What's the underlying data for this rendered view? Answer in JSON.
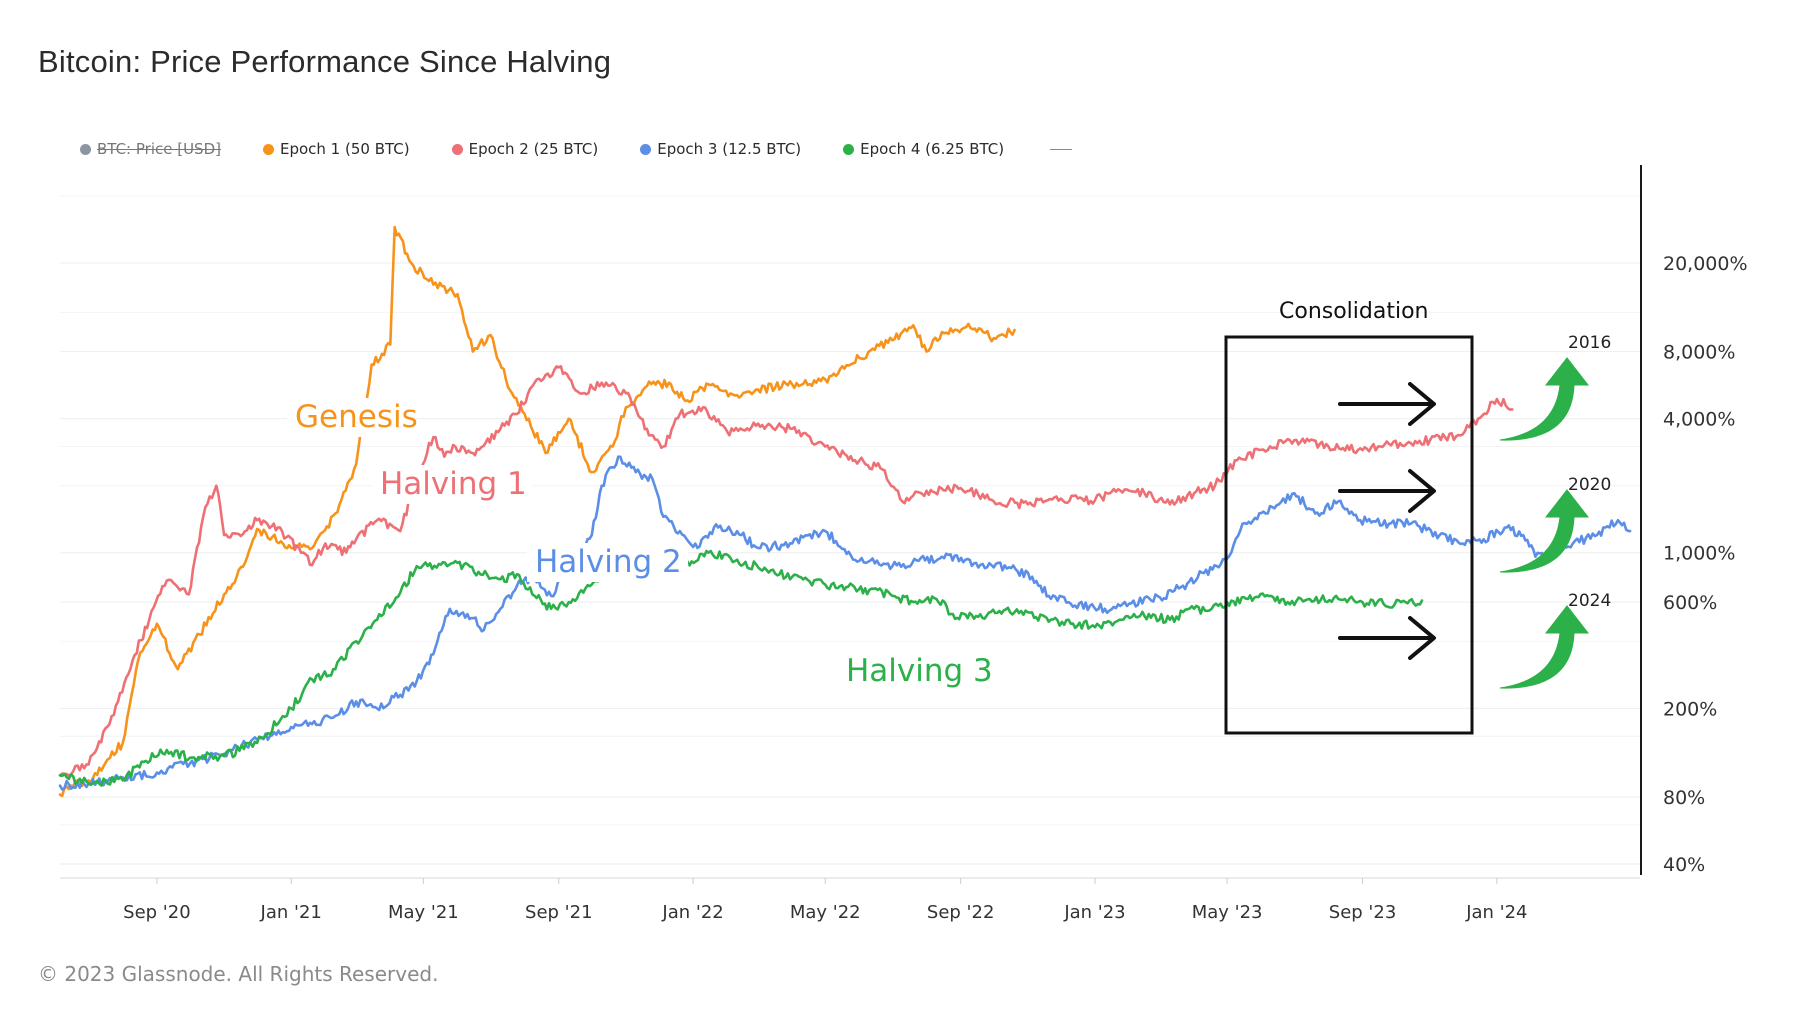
{
  "header": {
    "title": "Bitcoin: Price Performance Since Halving"
  },
  "footer": {
    "copyright": "© 2023 Glassnode. All Rights Reserved."
  },
  "legend": {
    "items": [
      {
        "label": "BTC: Price [USD]",
        "color": "#8a96a3",
        "disabled": true
      },
      {
        "label": "Epoch 1 (50 BTC)",
        "color": "#f7931a"
      },
      {
        "label": "Epoch 2 (25 BTC)",
        "color": "#ee7074"
      },
      {
        "label": "Epoch 3 (12.5 BTC)",
        "color": "#5b8ee6"
      },
      {
        "label": "Epoch 4 (6.25 BTC)",
        "color": "#2bb04a"
      }
    ]
  },
  "chart_data": {
    "type": "line",
    "title": "Bitcoin: Price Performance Since Halving",
    "yscale": "log",
    "y_ticks": [
      "20,000%",
      "8,000%",
      "4,000%",
      "1,000%",
      "600%",
      "200%",
      "80%",
      "40%"
    ],
    "x_ticks": [
      "Sep '20",
      "Jan '21",
      "May '21",
      "Sep '21",
      "Jan '22",
      "May '22",
      "Sep '22",
      "Jan '23",
      "May '23",
      "Sep '23",
      "Jan '24"
    ],
    "grid": true,
    "legend_position": "top-left",
    "series": [
      {
        "name": "Epoch 1 (50 BTC)",
        "color": "#f7931a",
        "points": [
          [
            "2020-06-05",
            82
          ],
          [
            "2020-06-15",
            90
          ],
          [
            "2020-07-01",
            95
          ],
          [
            "2020-08-01",
            140
          ],
          [
            "2020-08-15",
            330
          ],
          [
            "2020-09-01",
            480
          ],
          [
            "2020-09-20",
            300
          ],
          [
            "2020-10-10",
            430
          ],
          [
            "2020-11-01",
            650
          ],
          [
            "2020-11-20",
            900
          ],
          [
            "2020-12-01",
            1280
          ],
          [
            "2020-12-15",
            1180
          ],
          [
            "2021-01-01",
            1050
          ],
          [
            "2021-01-20",
            1050
          ],
          [
            "2021-02-10",
            1500
          ],
          [
            "2021-03-01",
            2500
          ],
          [
            "2021-03-15",
            7000
          ],
          [
            "2021-04-01",
            8600
          ],
          [
            "2021-04-05",
            29000
          ],
          [
            "2021-04-20",
            20000
          ],
          [
            "2021-05-10",
            16000
          ],
          [
            "2021-06-01",
            14500
          ],
          [
            "2021-06-15",
            8000
          ],
          [
            "2021-07-01",
            9500
          ],
          [
            "2021-07-15",
            6000
          ],
          [
            "2021-08-01",
            4200
          ],
          [
            "2021-08-20",
            2800
          ],
          [
            "2021-09-10",
            4000
          ],
          [
            "2021-10-01",
            2300
          ],
          [
            "2021-10-20",
            3000
          ],
          [
            "2021-11-01",
            4500
          ],
          [
            "2021-11-20",
            5600
          ],
          [
            "2021-12-10",
            5800
          ],
          [
            "2021-12-25",
            4800
          ],
          [
            "2022-01-15",
            5700
          ],
          [
            "2022-02-10",
            5100
          ],
          [
            "2022-03-01",
            5400
          ],
          [
            "2022-04-01",
            5700
          ],
          [
            "2022-05-01",
            6000
          ],
          [
            "2022-06-01",
            7500
          ],
          [
            "2022-07-01",
            9000
          ],
          [
            "2022-07-20",
            10500
          ],
          [
            "2022-08-01",
            8000
          ],
          [
            "2022-08-15",
            9800
          ],
          [
            "2022-09-10",
            10200
          ],
          [
            "2022-10-01",
            9200
          ],
          [
            "2022-10-20",
            10000
          ]
        ]
      },
      {
        "name": "Epoch 2 (25 BTC)",
        "color": "#ee7074",
        "points": [
          [
            "2020-06-05",
            100
          ],
          [
            "2020-07-01",
            112
          ],
          [
            "2020-07-20",
            170
          ],
          [
            "2020-08-10",
            330
          ],
          [
            "2020-08-25",
            500
          ],
          [
            "2020-09-10",
            750
          ],
          [
            "2020-09-30",
            650
          ],
          [
            "2020-10-15",
            1600
          ],
          [
            "2020-10-25",
            2000
          ],
          [
            "2020-11-01",
            1200
          ],
          [
            "2020-11-20",
            1250
          ],
          [
            "2020-12-01",
            1400
          ],
          [
            "2020-12-20",
            1300
          ],
          [
            "2021-01-10",
            1000
          ],
          [
            "2021-01-20",
            880
          ],
          [
            "2021-02-01",
            1100
          ],
          [
            "2021-02-20",
            1000
          ],
          [
            "2021-03-01",
            1150
          ],
          [
            "2021-03-20",
            1400
          ],
          [
            "2021-04-10",
            1250
          ],
          [
            "2021-04-25",
            2200
          ],
          [
            "2021-05-10",
            3300
          ],
          [
            "2021-05-20",
            2700
          ],
          [
            "2021-05-30",
            3000
          ],
          [
            "2021-06-15",
            2800
          ],
          [
            "2021-07-10",
            3600
          ],
          [
            "2021-07-25",
            4200
          ],
          [
            "2021-08-10",
            5800
          ],
          [
            "2021-09-01",
            6800
          ],
          [
            "2021-09-20",
            5200
          ],
          [
            "2021-10-10",
            5800
          ],
          [
            "2021-11-01",
            5200
          ],
          [
            "2021-11-20",
            3600
          ],
          [
            "2021-12-05",
            3000
          ],
          [
            "2021-12-20",
            4200
          ],
          [
            "2022-01-10",
            4500
          ],
          [
            "2022-02-01",
            3500
          ],
          [
            "2022-03-01",
            3800
          ],
          [
            "2022-04-01",
            3600
          ],
          [
            "2022-05-01",
            3000
          ],
          [
            "2022-06-01",
            2600
          ],
          [
            "2022-06-20",
            2400
          ],
          [
            "2022-07-10",
            1700
          ],
          [
            "2022-08-01",
            1900
          ],
          [
            "2022-09-01",
            1950
          ],
          [
            "2022-10-01",
            1700
          ],
          [
            "2022-11-01",
            1650
          ],
          [
            "2022-12-01",
            1750
          ],
          [
            "2023-01-01",
            1720
          ],
          [
            "2023-01-20",
            1880
          ],
          [
            "2023-02-15",
            1850
          ],
          [
            "2023-03-10",
            1650
          ],
          [
            "2023-04-01",
            1850
          ],
          [
            "2023-04-20",
            2000
          ],
          [
            "2023-05-10",
            2600
          ],
          [
            "2023-06-01",
            2900
          ],
          [
            "2023-07-01",
            3200
          ],
          [
            "2023-08-01",
            3000
          ],
          [
            "2023-08-20",
            2900
          ],
          [
            "2023-09-15",
            3000
          ],
          [
            "2023-10-15",
            3100
          ],
          [
            "2023-11-15",
            3300
          ],
          [
            "2023-12-01",
            3400
          ],
          [
            "2023-12-15",
            4000
          ],
          [
            "2024-01-01",
            4900
          ],
          [
            "2024-01-15",
            4400
          ]
        ]
      },
      {
        "name": "Epoch 3 (12.5 BTC)",
        "color": "#5b8ee6",
        "points": [
          [
            "2020-06-05",
            90
          ],
          [
            "2020-07-01",
            92
          ],
          [
            "2020-08-01",
            98
          ],
          [
            "2020-09-01",
            103
          ],
          [
            "2020-10-01",
            113
          ],
          [
            "2020-11-01",
            125
          ],
          [
            "2020-12-01",
            145
          ],
          [
            "2021-01-01",
            165
          ],
          [
            "2021-01-20",
            170
          ],
          [
            "2021-02-10",
            185
          ],
          [
            "2021-03-01",
            215
          ],
          [
            "2021-03-20",
            200
          ],
          [
            "2021-04-10",
            230
          ],
          [
            "2021-04-25",
            265
          ],
          [
            "2021-05-10",
            350
          ],
          [
            "2021-05-25",
            560
          ],
          [
            "2021-06-10",
            530
          ],
          [
            "2021-06-25",
            450
          ],
          [
            "2021-07-10",
            560
          ],
          [
            "2021-07-25",
            710
          ],
          [
            "2021-08-10",
            780
          ],
          [
            "2021-08-25",
            640
          ],
          [
            "2021-09-10",
            860
          ],
          [
            "2021-10-01",
            1200
          ],
          [
            "2021-10-10",
            2000
          ],
          [
            "2021-10-25",
            2700
          ],
          [
            "2021-11-10",
            2300
          ],
          [
            "2021-11-25",
            2150
          ],
          [
            "2021-12-05",
            1450
          ],
          [
            "2021-12-20",
            1250
          ],
          [
            "2022-01-05",
            1050
          ],
          [
            "2022-01-20",
            1300
          ],
          [
            "2022-02-10",
            1250
          ],
          [
            "2022-03-01",
            1050
          ],
          [
            "2022-04-01",
            1100
          ],
          [
            "2022-05-01",
            1250
          ],
          [
            "2022-06-01",
            920
          ],
          [
            "2022-07-01",
            870
          ],
          [
            "2022-07-25",
            920
          ],
          [
            "2022-08-15",
            960
          ],
          [
            "2022-09-15",
            900
          ],
          [
            "2022-10-15",
            860
          ],
          [
            "2022-11-05",
            780
          ],
          [
            "2022-11-20",
            640
          ],
          [
            "2022-12-10",
            590
          ],
          [
            "2023-01-10",
            560
          ],
          [
            "2023-02-01",
            590
          ],
          [
            "2023-03-01",
            630
          ],
          [
            "2023-03-20",
            700
          ],
          [
            "2023-04-10",
            810
          ],
          [
            "2023-05-01",
            940
          ],
          [
            "2023-05-15",
            1350
          ],
          [
            "2023-06-05",
            1500
          ],
          [
            "2023-07-01",
            1850
          ],
          [
            "2023-07-20",
            1500
          ],
          [
            "2023-08-10",
            1700
          ],
          [
            "2023-08-30",
            1400
          ],
          [
            "2023-09-25",
            1350
          ],
          [
            "2023-10-15",
            1350
          ],
          [
            "2023-11-10",
            1200
          ],
          [
            "2023-12-01",
            1100
          ],
          [
            "2023-12-20",
            1150
          ],
          [
            "2024-01-10",
            1300
          ],
          [
            "2024-01-25",
            1200
          ],
          [
            "2024-02-05",
            960
          ],
          [
            "2024-02-25",
            1050
          ],
          [
            "2024-03-10",
            1100
          ],
          [
            "2024-04-01",
            1200
          ],
          [
            "2024-04-20",
            1400
          ],
          [
            "2024-05-01",
            1250
          ]
        ]
      },
      {
        "name": "Epoch 4 (6.25 BTC)",
        "color": "#2bb04a",
        "points": [
          [
            "2020-06-05",
            100
          ],
          [
            "2020-07-01",
            92
          ],
          [
            "2020-08-01",
            95
          ],
          [
            "2020-08-20",
            115
          ],
          [
            "2020-09-10",
            130
          ],
          [
            "2020-10-01",
            120
          ],
          [
            "2020-11-01",
            122
          ],
          [
            "2020-12-01",
            140
          ],
          [
            "2021-01-01",
            200
          ],
          [
            "2021-01-20",
            270
          ],
          [
            "2021-02-10",
            300
          ],
          [
            "2021-03-01",
            400
          ],
          [
            "2021-03-20",
            500
          ],
          [
            "2021-04-10",
            660
          ],
          [
            "2021-04-25",
            870
          ],
          [
            "2021-05-15",
            890
          ],
          [
            "2021-06-01",
            900
          ],
          [
            "2021-06-20",
            820
          ],
          [
            "2021-07-10",
            760
          ],
          [
            "2021-07-25",
            800
          ],
          [
            "2021-08-10",
            640
          ],
          [
            "2021-08-25",
            560
          ],
          [
            "2021-09-10",
            600
          ],
          [
            "2021-10-01",
            720
          ],
          [
            "2021-10-20",
            870
          ],
          [
            "2021-11-10",
            830
          ],
          [
            "2021-11-25",
            900
          ],
          [
            "2021-12-10",
            820
          ],
          [
            "2021-12-25",
            900
          ],
          [
            "2022-01-15",
            1000
          ],
          [
            "2022-02-10",
            930
          ],
          [
            "2022-03-01",
            860
          ],
          [
            "2022-04-01",
            780
          ],
          [
            "2022-05-01",
            720
          ],
          [
            "2022-05-20",
            700
          ],
          [
            "2022-06-10",
            680
          ],
          [
            "2022-07-01",
            640
          ],
          [
            "2022-07-20",
            600
          ],
          [
            "2022-08-10",
            620
          ],
          [
            "2022-08-25",
            530
          ],
          [
            "2022-09-15",
            520
          ],
          [
            "2022-10-10",
            550
          ],
          [
            "2022-11-01",
            540
          ],
          [
            "2022-11-20",
            490
          ],
          [
            "2022-12-10",
            480
          ],
          [
            "2023-01-05",
            470
          ],
          [
            "2023-01-25",
            500
          ],
          [
            "2023-02-15",
            520
          ],
          [
            "2023-03-10",
            500
          ],
          [
            "2023-04-01",
            560
          ],
          [
            "2023-04-15",
            550
          ],
          [
            "2023-05-01",
            600
          ],
          [
            "2023-05-20",
            620
          ],
          [
            "2023-06-10",
            640
          ],
          [
            "2023-06-25",
            600
          ],
          [
            "2023-07-15",
            620
          ],
          [
            "2023-08-10",
            620
          ],
          [
            "2023-09-01",
            600
          ],
          [
            "2023-09-20",
            590
          ],
          [
            "2023-10-10",
            600
          ],
          [
            "2023-10-25",
            610
          ]
        ]
      }
    ],
    "annotations": [
      {
        "text": "Genesis",
        "color": "#f7931a"
      },
      {
        "text": "Halving 1",
        "color": "#ee7074"
      },
      {
        "text": "Halving 2",
        "color": "#5b8ee6"
      },
      {
        "text": "Halving 3",
        "color": "#2bb04a"
      },
      {
        "text": "Consolidation",
        "color": "#111111"
      },
      {
        "text": "2016",
        "color": "#222222"
      },
      {
        "text": "2020",
        "color": "#222222"
      },
      {
        "text": "2024",
        "color": "#222222"
      }
    ]
  }
}
